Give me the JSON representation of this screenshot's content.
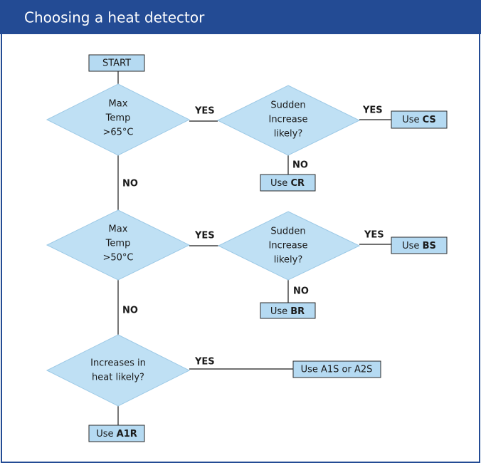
{
  "header": {
    "title": "Choosing a heat detector"
  },
  "start": "START",
  "decisions": [
    {
      "lines": [
        "Max",
        "Temp",
        ">65°C"
      ]
    },
    {
      "lines": [
        "Sudden",
        "Increase",
        "likely?"
      ]
    },
    {
      "lines": [
        "Max",
        "Temp",
        ">50°C"
      ]
    },
    {
      "lines": [
        "Sudden",
        "Increase",
        "likely?"
      ]
    },
    {
      "lines": [
        "Increases in",
        "heat likely?"
      ]
    }
  ],
  "outcomes": [
    {
      "text": "Use",
      "code": "CS"
    },
    {
      "text": "Use",
      "code": "CR"
    },
    {
      "text": "Use",
      "code": "BS"
    },
    {
      "text": "Use",
      "code": "BR"
    },
    {
      "text": "Use A1S or A2S"
    },
    {
      "text": "Use",
      "code": "A1R"
    }
  ],
  "edge_labels": [
    "YES",
    "YES",
    "NO",
    "NO",
    "YES",
    "YES",
    "NO",
    "NO",
    "YES"
  ]
}
